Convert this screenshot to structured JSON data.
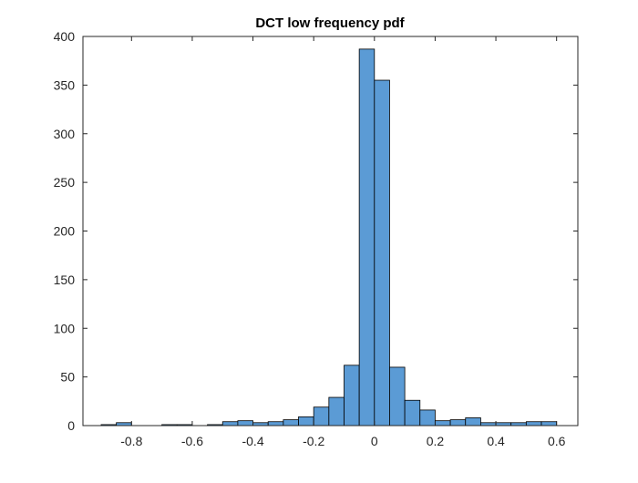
{
  "chart_data": {
    "type": "bar",
    "title": "DCT low frequency pdf",
    "xlabel": "",
    "ylabel": "",
    "xlim": [
      -0.96,
      0.67
    ],
    "ylim": [
      0,
      400
    ],
    "grid": false,
    "bin_width": 0.05,
    "bin_edges": [
      -0.9,
      -0.85,
      -0.8,
      -0.75,
      -0.7,
      -0.65,
      -0.6,
      -0.55,
      -0.5,
      -0.45,
      -0.4,
      -0.35,
      -0.3,
      -0.25,
      -0.2,
      -0.15,
      -0.1,
      -0.05,
      0.0,
      0.05,
      0.1,
      0.15,
      0.2,
      0.25,
      0.3,
      0.35,
      0.4,
      0.45,
      0.5,
      0.55,
      0.6
    ],
    "values": [
      1,
      3,
      0,
      0,
      1,
      1,
      0,
      1,
      4,
      5,
      3,
      4,
      6,
      9,
      19,
      29,
      62,
      387,
      355,
      60,
      26,
      16,
      5,
      6,
      8,
      3,
      3,
      3,
      4,
      4
    ],
    "xticks": [
      -0.8,
      -0.6,
      -0.4,
      -0.2,
      0,
      0.2,
      0.4,
      0.6
    ],
    "xtick_labels": [
      "-0.8",
      "-0.6",
      "-0.4",
      "-0.2",
      "0",
      "0.2",
      "0.4",
      "0.6"
    ],
    "yticks": [
      0,
      50,
      100,
      150,
      200,
      250,
      300,
      350,
      400
    ],
    "ytick_labels": [
      "0",
      "50",
      "100",
      "150",
      "200",
      "250",
      "300",
      "350",
      "400"
    ],
    "colors": {
      "bar_fill": "#5b9bd5",
      "bar_edge": "#000000",
      "axis": "#262626"
    }
  }
}
